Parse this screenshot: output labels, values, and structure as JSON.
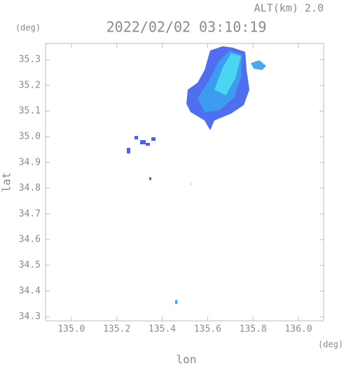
{
  "chart_data": {
    "type": "map",
    "title": "2022/02/02 03:10:19",
    "subtitle": "ALT(km) 2.0",
    "x_label": "lon",
    "y_label": "lat",
    "x_unit": "(deg)",
    "y_unit": "(deg)",
    "xlim": [
      134.886,
      136.111
    ],
    "ylim": [
      34.284,
      35.363
    ],
    "xticks": [
      {
        "value": 135,
        "label": "135.0"
      },
      135.2,
      135.4,
      135.6,
      135.8,
      {
        "value": 136,
        "label": "136.0"
      }
    ],
    "yticks": [
      34.3,
      34.4,
      34.5,
      34.6,
      34.7,
      34.8,
      34.9,
      {
        "value": 35,
        "label": "35.0"
      },
      35.1,
      35.2,
      35.3
    ]
  }
}
